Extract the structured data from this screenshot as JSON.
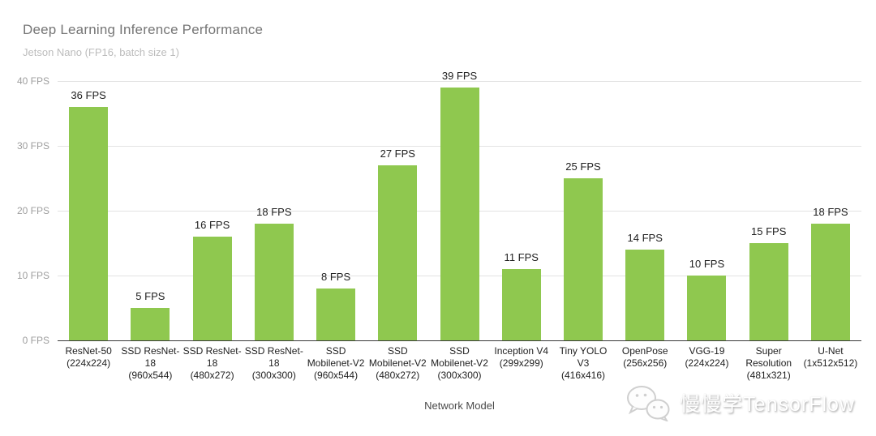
{
  "chart_data": {
    "type": "bar",
    "title": "Deep Learning Inference Performance",
    "subtitle": "Jetson Nano (FP16, batch size 1)",
    "xlabel": "Network Model",
    "ylabel": "",
    "ylim": [
      0,
      40
    ],
    "grid": true,
    "legend_position": "none",
    "bar_color": "#8fc84f",
    "yticks_top_to_bottom": [
      "40 FPS",
      "30 FPS",
      "20 FPS",
      "10 FPS",
      "0 FPS"
    ],
    "categories": [
      "ResNet-50\n(224x224)",
      "SSD ResNet-\n18\n(960x544)",
      "SSD ResNet-\n18\n(480x272)",
      "SSD ResNet-\n18\n(300x300)",
      "SSD\nMobilenet-V2\n(960x544)",
      "SSD\nMobilenet-V2\n(480x272)",
      "SSD\nMobilenet-V2\n(300x300)",
      "Inception V4\n(299x299)",
      "Tiny YOLO\nV3\n(416x416)",
      "OpenPose\n(256x256)",
      "VGG-19\n(224x224)",
      "Super\nResolution\n(481x321)",
      "U-Net\n(1x512x512)"
    ],
    "values": [
      36,
      5,
      16,
      18,
      8,
      27,
      39,
      11,
      25,
      14,
      10,
      15,
      18
    ],
    "value_labels": [
      "36 FPS",
      "5 FPS",
      "16 FPS",
      "18 FPS",
      "8 FPS",
      "27 FPS",
      "39 FPS",
      "11 FPS",
      "25 FPS",
      "14 FPS",
      "10 FPS",
      "15 FPS",
      "18 FPS"
    ]
  },
  "watermark": {
    "text": "慢慢学TensorFlow",
    "icon": "wechat-icon"
  }
}
